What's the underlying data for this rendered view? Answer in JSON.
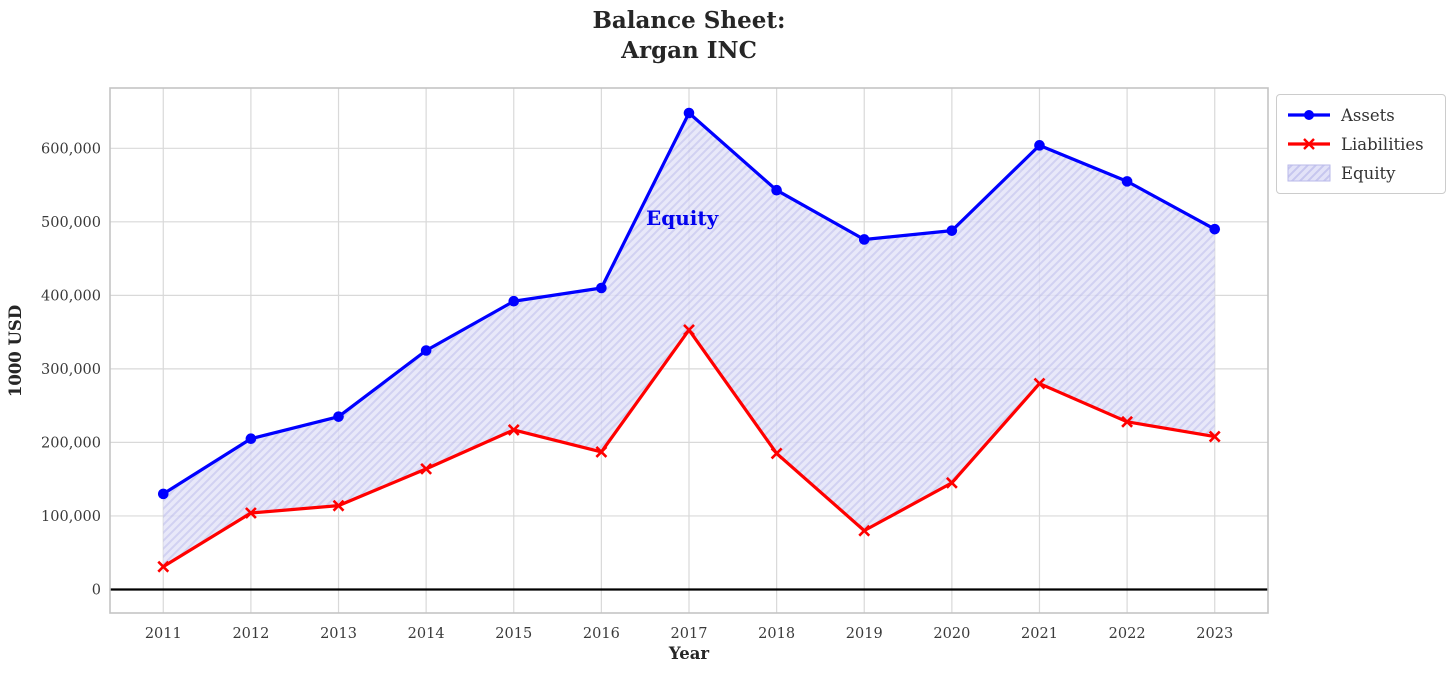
{
  "title": {
    "line1": "Balance Sheet:",
    "line2": "Argan INC"
  },
  "axes": {
    "x_label": "Year",
    "y_label": "1000 USD"
  },
  "annotation": {
    "text": "Equity",
    "color": "#0202ee"
  },
  "legend": {
    "items": [
      {
        "label": "Assets",
        "symbol": "blue-line-circle-marker"
      },
      {
        "label": "Liabilities",
        "symbol": "red-line-x-marker"
      },
      {
        "label": "Equity",
        "symbol": "hatched-patch"
      }
    ]
  },
  "colors": {
    "assets_line": "#0000ff",
    "liabilities_line": "#ff0000",
    "equity_fill_bg": "#e2e2f8",
    "equity_hatch": "#c6c6ef",
    "grid": "#d9d9d9",
    "frame": "#c4c4c4",
    "zero_line": "#000000",
    "text": "#262626"
  },
  "chart_data": {
    "type": "line",
    "title": "Balance Sheet:\nArgan INC",
    "xlabel": "Year",
    "ylabel": "1000 USD",
    "categories": [
      2011,
      2012,
      2013,
      2014,
      2015,
      2016,
      2017,
      2018,
      2019,
      2020,
      2021,
      2022,
      2023
    ],
    "series": [
      {
        "name": "Assets",
        "marker": "circle",
        "color": "#0000ff",
        "values": [
          130000,
          205000,
          235000,
          325000,
          392000,
          410000,
          648000,
          543000,
          476000,
          488000,
          604000,
          555000,
          490000
        ]
      },
      {
        "name": "Liabilities",
        "marker": "x",
        "color": "#ff0000",
        "values": [
          31000,
          104000,
          114000,
          164000,
          217000,
          187000,
          353000,
          185000,
          80000,
          145000,
          280000,
          228000,
          208000
        ]
      }
    ],
    "fill_between": {
      "name": "Equity",
      "upper": "Assets",
      "lower": "Liabilities",
      "style": "diagonal-hatch"
    },
    "y_ticks": [
      0,
      100000,
      200000,
      300000,
      400000,
      500000,
      600000
    ],
    "y_tick_labels": [
      "0",
      "100,000",
      "200,000",
      "300,000",
      "400,000",
      "500,000",
      "600,000"
    ],
    "x_tick_labels": [
      "2011",
      "2012",
      "2013",
      "2014",
      "2015",
      "2016",
      "2017",
      "2018",
      "2019",
      "2020",
      "2021",
      "2022",
      "2023"
    ],
    "ylim": [
      -32000,
      682000
    ],
    "xlim": [
      2010.392,
      2023.608
    ],
    "grid": true,
    "zero_line": true,
    "legend_position": "upper right outside"
  }
}
